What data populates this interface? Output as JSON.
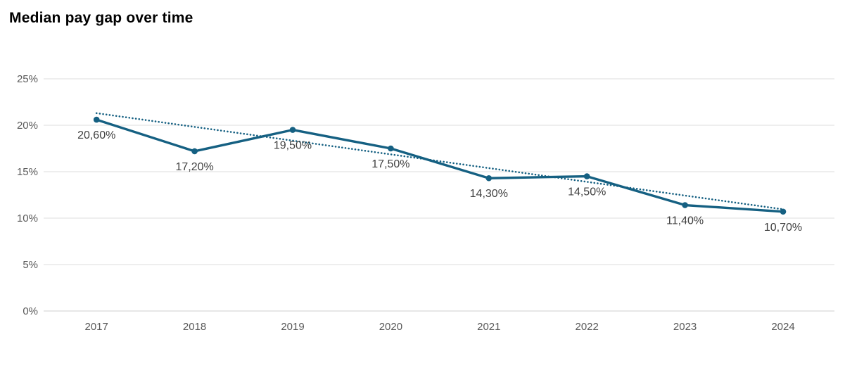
{
  "title": "Median pay gap over time",
  "chart_data": {
    "type": "line",
    "title": "Median pay gap over time",
    "categories": [
      "2017",
      "2018",
      "2019",
      "2020",
      "2021",
      "2022",
      "2023",
      "2024"
    ],
    "series": [
      {
        "name": "Median pay gap",
        "values": [
          20.6,
          17.2,
          19.5,
          17.5,
          14.3,
          14.5,
          11.4,
          10.7
        ],
        "labels": [
          "20,60%",
          "17,20%",
          "19,50%",
          "17,50%",
          "14,30%",
          "14,50%",
          "11,40%",
          "10,70%"
        ]
      }
    ],
    "trendline": {
      "type": "linear",
      "style": "dotted",
      "start": 21.3,
      "end": 10.95
    },
    "yticks": [
      {
        "value": 0,
        "label": "0%"
      },
      {
        "value": 5,
        "label": "5%"
      },
      {
        "value": 10,
        "label": "10%"
      },
      {
        "value": 15,
        "label": "15%"
      },
      {
        "value": 20,
        "label": "20%"
      },
      {
        "value": 25,
        "label": "25%"
      }
    ],
    "ylim": [
      0,
      25
    ],
    "xlabel": "",
    "ylabel": "",
    "grid": true,
    "legend": "none",
    "colors": {
      "series": "#156082",
      "trendline": "#156082",
      "gridline": "#dcdcdc",
      "axis_line": "#cfcfcf",
      "tick_text": "#595959",
      "data_label_text": "#404040",
      "title_text": "#000000"
    }
  }
}
